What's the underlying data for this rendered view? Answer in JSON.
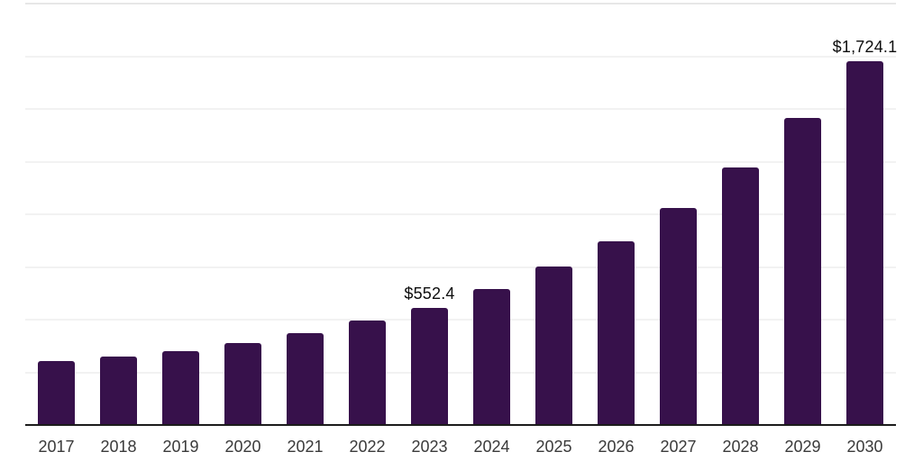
{
  "chart_data": {
    "type": "bar",
    "title": "",
    "xlabel": "",
    "ylabel": "",
    "categories": [
      "2017",
      "2018",
      "2019",
      "2020",
      "2021",
      "2022",
      "2023",
      "2024",
      "2025",
      "2026",
      "2027",
      "2028",
      "2029",
      "2030"
    ],
    "values": [
      298,
      322,
      348,
      383,
      432,
      490,
      552.4,
      640,
      747,
      869,
      1027,
      1219,
      1452,
      1724.1
    ],
    "value_labels": {
      "2023": "$552.4",
      "2030": "$1,724.1"
    },
    "ylim": [
      0,
      2000
    ],
    "grid_intervals": 8,
    "grid": true,
    "legend": false,
    "currency_prefix": "$"
  },
  "colors": {
    "bar": "#37114B",
    "grid": "#f2f2f2",
    "grid_top": "#e7e7e7",
    "axis": "#1c1c1c",
    "tick_label": "#3a3a3a",
    "value_label": "#0d0d0d",
    "background": "#ffffff"
  }
}
